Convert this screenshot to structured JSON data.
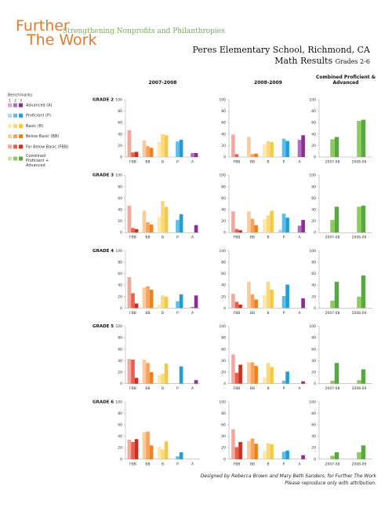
{
  "header": {
    "logo_line1": "Further",
    "logo_line2": "The Work",
    "tagline": "Strengthening Nonprofits and Philanthropies",
    "title": "Peres Elementary School, Richmond, CA",
    "subtitle": "Math Results",
    "grades": "Grades 2-6"
  },
  "columns": [
    "2007-2008",
    "2008-2009",
    "Combined Proficient & Advanced"
  ],
  "rows": [
    "GRADE 2",
    "GRADE 3",
    "GRADE 4",
    "GRADE 5",
    "GRADE 6"
  ],
  "legend": {
    "title": "Benchmarks",
    "benchmarks": [
      "1",
      "2",
      "3"
    ],
    "items": [
      {
        "label": "Advanced (A)",
        "colors": [
          "#d9a6dc",
          "#b66cbf",
          "#8c2e91"
        ]
      },
      {
        "label": "Proficient (P)",
        "colors": [
          "#acd9f0",
          "#5dbfe9",
          "#1f9dd9"
        ]
      },
      {
        "label": "Basic (B)",
        "colors": [
          "#fce9ad",
          "#f9d97c",
          "#f4c84b"
        ]
      },
      {
        "label": "Below Basic (BB)",
        "colors": [
          "#fccb9c",
          "#f7a15b",
          "#ef801e"
        ]
      },
      {
        "label": "Far Below Basic (FBB)",
        "colors": [
          "#f5a79c",
          "#ea5e4e",
          "#c8311d"
        ]
      },
      {
        "label": "Combined Proficient + Advanced",
        "colors": [
          "#c7e5aa",
          "#8dcb5f",
          "#55aa3b"
        ]
      }
    ]
  },
  "chart_data": [
    {
      "type": "bar",
      "categories": [
        "FBB",
        "BB",
        "B",
        "P",
        "A"
      ],
      "values": [
        [
          47,
          8,
          9
        ],
        [
          29,
          19,
          16
        ],
        [
          26,
          40,
          38
        ],
        [
          null,
          27,
          30
        ],
        [
          null,
          7,
          7
        ]
      ],
      "ylim": [
        0,
        100
      ],
      "yticks": [
        0,
        20,
        40,
        60,
        80,
        100
      ]
    },
    {
      "type": "bar",
      "categories": [
        "FBB",
        "BB",
        "B",
        "P",
        "A"
      ],
      "values": [
        [
          39,
          5,
          null
        ],
        [
          35,
          5,
          6
        ],
        [
          22,
          28,
          26
        ],
        [
          null,
          32,
          28
        ],
        [
          null,
          30,
          38
        ]
      ],
      "ylim": [
        0,
        100
      ],
      "yticks": [
        0,
        20,
        40,
        60,
        80,
        100
      ]
    },
    {
      "type": "combined",
      "categories": [
        "2007-08",
        "2008-09"
      ],
      "values": [
        [
          null,
          31,
          35
        ],
        [
          null,
          63,
          65
        ]
      ],
      "ylim": [
        0,
        100
      ],
      "yticks": [
        0,
        20,
        40,
        60,
        80,
        100
      ]
    },
    {
      "type": "bar",
      "categories": [
        "FBB",
        "BB",
        "B",
        "P",
        "A"
      ],
      "values": [
        [
          47,
          8,
          6
        ],
        [
          38,
          18,
          14
        ],
        [
          27,
          55,
          45
        ],
        [
          null,
          22,
          32
        ],
        [
          null,
          null,
          13
        ]
      ],
      "ylim": [
        0,
        100
      ],
      "yticks": [
        0,
        20,
        40,
        60,
        80,
        100
      ]
    },
    {
      "type": "bar",
      "categories": [
        "FBB",
        "BB",
        "B",
        "P",
        "A"
      ],
      "values": [
        [
          37,
          6,
          4
        ],
        [
          37,
          24,
          13
        ],
        [
          23,
          30,
          38
        ],
        [
          5,
          33,
          26
        ],
        [
          null,
          12,
          22
        ]
      ],
      "ylim": [
        0,
        100
      ],
      "yticks": [
        0,
        20,
        40,
        60,
        80,
        100
      ]
    },
    {
      "type": "combined",
      "categories": [
        "2007-08",
        "2008-09"
      ],
      "values": [
        [
          null,
          22,
          45
        ],
        [
          null,
          45,
          47
        ]
      ],
      "ylim": [
        0,
        100
      ],
      "yticks": [
        0,
        20,
        40,
        60,
        80,
        100
      ]
    },
    {
      "type": "bar",
      "categories": [
        "FBB",
        "BB",
        "B",
        "P",
        "A"
      ],
      "values": [
        [
          54,
          26,
          8
        ],
        [
          36,
          38,
          32
        ],
        [
          6,
          22,
          20
        ],
        [
          null,
          12,
          24
        ],
        [
          null,
          2,
          22
        ]
      ],
      "ylim": [
        0,
        100
      ],
      "yticks": [
        0,
        20,
        40,
        60,
        80,
        100
      ]
    },
    {
      "type": "bar",
      "categories": [
        "FBB",
        "BB",
        "B",
        "P",
        "A"
      ],
      "values": [
        [
          25,
          11,
          6
        ],
        [
          46,
          24,
          15
        ],
        [
          23,
          46,
          32
        ],
        [
          null,
          21,
          41
        ],
        [
          null,
          null,
          17
        ]
      ],
      "ylim": [
        0,
        100
      ],
      "yticks": [
        0,
        20,
        40,
        60,
        80,
        100
      ]
    },
    {
      "type": "combined",
      "categories": [
        "2007-08",
        "2008-09"
      ],
      "values": [
        [
          null,
          13,
          46
        ],
        [
          null,
          20,
          57
        ]
      ],
      "ylim": [
        0,
        100
      ],
      "yticks": [
        0,
        20,
        40,
        60,
        80,
        100
      ]
    },
    {
      "type": "bar",
      "categories": [
        "FBB",
        "BB",
        "B",
        "P",
        "A"
      ],
      "values": [
        [
          43,
          42,
          10
        ],
        [
          42,
          36,
          20
        ],
        [
          15,
          17,
          35
        ],
        [
          null,
          null,
          30
        ],
        [
          null,
          null,
          6
        ]
      ],
      "ylim": [
        0,
        100
      ],
      "yticks": [
        0,
        20,
        40,
        60,
        80,
        100
      ]
    },
    {
      "type": "bar",
      "categories": [
        "FBB",
        "BB",
        "B",
        "P",
        "A"
      ],
      "values": [
        [
          51,
          19,
          33
        ],
        [
          37,
          37,
          31
        ],
        [
          11,
          36,
          29
        ],
        [
          null,
          5,
          21
        ],
        [
          null,
          null,
          4
        ]
      ],
      "ylim": [
        0,
        100
      ],
      "yticks": [
        0,
        20,
        40,
        60,
        80,
        100
      ]
    },
    {
      "type": "combined",
      "categories": [
        "2007-08",
        "2008-09"
      ],
      "values": [
        [
          null,
          5,
          36
        ],
        [
          null,
          6,
          25
        ]
      ],
      "ylim": [
        0,
        100
      ],
      "yticks": [
        0,
        20,
        40,
        60,
        80,
        100
      ]
    },
    {
      "type": "bar",
      "categories": [
        "FBB",
        "BB",
        "B",
        "P",
        "A"
      ],
      "values": [
        [
          34,
          30,
          35
        ],
        [
          47,
          48,
          24
        ],
        [
          22,
          17,
          31
        ],
        [
          null,
          5,
          12
        ],
        [
          null,
          null,
          null
        ]
      ],
      "ylim": [
        0,
        100
      ],
      "yticks": [
        0,
        20,
        40,
        60,
        80,
        100
      ]
    },
    {
      "type": "bar",
      "categories": [
        "FBB",
        "BB",
        "B",
        "P",
        "A"
      ],
      "values": [
        [
          52,
          21,
          30
        ],
        [
          32,
          36,
          27
        ],
        [
          14,
          28,
          26
        ],
        [
          null,
          13,
          15
        ],
        [
          null,
          null,
          7
        ]
      ],
      "ylim": [
        0,
        100
      ],
      "yticks": [
        0,
        20,
        40,
        60,
        80,
        100
      ]
    },
    {
      "type": "combined",
      "categories": [
        "2007-08",
        "2008-09"
      ],
      "values": [
        [
          null,
          6,
          12
        ],
        [
          null,
          12,
          24
        ]
      ],
      "ylim": [
        0,
        100
      ],
      "yticks": [
        0,
        20,
        40,
        60,
        80,
        100
      ]
    }
  ],
  "footer": {
    "credit": "Designed by Rebecca Brown and Mary Beth Sanders, for Further The Work",
    "note": "Please reproduce only with attribution."
  }
}
